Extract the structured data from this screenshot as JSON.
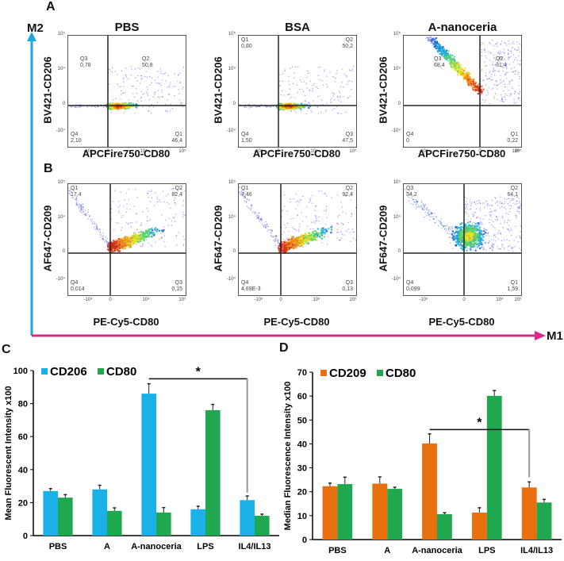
{
  "panel_letters": {
    "a": "A",
    "b": "B",
    "c": "C",
    "d": "D"
  },
  "axes_arrows": {
    "m2_label": "M2",
    "m2_color": "#1ea6dc",
    "m1_label": "M1",
    "m1_color": "#e0278a"
  },
  "flow_tick_labels": {
    "top": "10⁵",
    "mid": "10⁴",
    "zero": "0",
    "neg": "-10⁴",
    "x_neg": "-10⁴",
    "x_zero": "0",
    "x_mid": "10⁴",
    "x_max": "10⁵"
  },
  "row_a": {
    "x_label": "APCFire750-CD80",
    "y_label": "BV421-CD206",
    "plots": [
      {
        "title": "PBS",
        "quadrants": {
          "tl": {
            "name": "Q3",
            "value": "0,78"
          },
          "tr": {
            "name": "Q2",
            "value": "50,8"
          },
          "bl": {
            "name": "Q4",
            "value": "2,10"
          },
          "br": {
            "name": "Q1",
            "value": "46,4"
          }
        }
      },
      {
        "title": "BSA",
        "quadrants": {
          "tl": {
            "name": "Q1",
            "value": "0,80"
          },
          "tr": {
            "name": "Q2",
            "value": "50,2"
          },
          "bl": {
            "name": "Q4",
            "value": "1,50"
          },
          "br": {
            "name": "Q3",
            "value": "47,5"
          }
        }
      },
      {
        "title": "A-nanoceria",
        "quadrants": {
          "tl": {
            "name": "Q3",
            "value": "68,4"
          },
          "tr": {
            "name": "Q2",
            "value": "31,4"
          },
          "bl": {
            "name": "Q4",
            "value": "0"
          },
          "br": {
            "name": "Q1",
            "value": "0,22"
          }
        }
      }
    ]
  },
  "row_b": {
    "x_label": "PE-Cy5-CD80",
    "y_label": "AF647-CD209",
    "plots": [
      {
        "title": "PBS",
        "quadrants": {
          "tl": {
            "name": "Q1",
            "value": "17,4"
          },
          "tr": {
            "name": "Q2",
            "value": "82,4"
          },
          "bl": {
            "name": "Q4",
            "value": "0,014"
          },
          "br": {
            "name": "Q3",
            "value": "0,15"
          }
        }
      },
      {
        "title": "BSA",
        "quadrants": {
          "tl": {
            "name": "Q1",
            "value": "7,46"
          },
          "tr": {
            "name": "Q2",
            "value": "92,4"
          },
          "bl": {
            "name": "Q4",
            "value": "4,69E-3"
          },
          "br": {
            "name": "Q3",
            "value": "0,13"
          }
        }
      },
      {
        "title": "A-nanoceria",
        "quadrants": {
          "tl": {
            "name": "Q3",
            "value": "34,2"
          },
          "tr": {
            "name": "Q2",
            "value": "64,1"
          },
          "bl": {
            "name": "Q4",
            "value": "0,099"
          },
          "br": {
            "name": "Q1",
            "value": "1,59"
          }
        }
      }
    ]
  },
  "chart_data": [
    {
      "panel": "C",
      "type": "bar",
      "title": "",
      "xlabel": "",
      "ylabel": "Mean Fluorescent Intensity x100",
      "ylim": [
        0,
        100
      ],
      "yticks": [
        0,
        20,
        40,
        60,
        80,
        100
      ],
      "grid": false,
      "legend": "top-left",
      "categories": [
        "PBS",
        "A",
        "A-nanoceria",
        "LPS",
        "IL4/IL13"
      ],
      "series": [
        {
          "name": "CD206",
          "color": "#1ab0e8",
          "values": [
            27,
            28,
            86,
            16,
            21.5
          ],
          "errors": [
            1.5,
            2.5,
            6,
            1.8,
            2.5
          ]
        },
        {
          "name": "CD80",
          "color": "#1fa84f",
          "values": [
            23,
            15,
            14,
            76,
            12
          ],
          "errors": [
            1.8,
            1.8,
            3,
            3.5,
            1
          ]
        }
      ],
      "significance": {
        "label": "*",
        "from": "A-nanoceria",
        "to": "IL4/IL13",
        "y": 95
      }
    },
    {
      "panel": "D",
      "type": "bar",
      "title": "",
      "xlabel": "",
      "ylabel": "Median Fluorescence Intensity x100",
      "ylim": [
        0,
        70
      ],
      "yticks": [
        0,
        10,
        20,
        30,
        40,
        50,
        60,
        70
      ],
      "grid": false,
      "legend": "top-left",
      "categories": [
        "PBS",
        "A",
        "A-nanoceria",
        "LPS",
        "IL4/IL13"
      ],
      "series": [
        {
          "name": "CD209",
          "color": "#e8700f",
          "values": [
            22.3,
            23.4,
            40.2,
            11.3,
            21.8
          ],
          "errors": [
            1.3,
            2.8,
            4,
            2,
            2.3
          ]
        },
        {
          "name": "CD80",
          "color": "#1fa84f",
          "values": [
            23.2,
            21.2,
            10.6,
            60.1,
            15.5
          ],
          "errors": [
            2.9,
            0.7,
            0.6,
            2.2,
            1.3
          ]
        }
      ],
      "significance": {
        "label": "*",
        "from": "A-nanoceria",
        "to": "IL4/IL13",
        "y": 46
      }
    }
  ]
}
